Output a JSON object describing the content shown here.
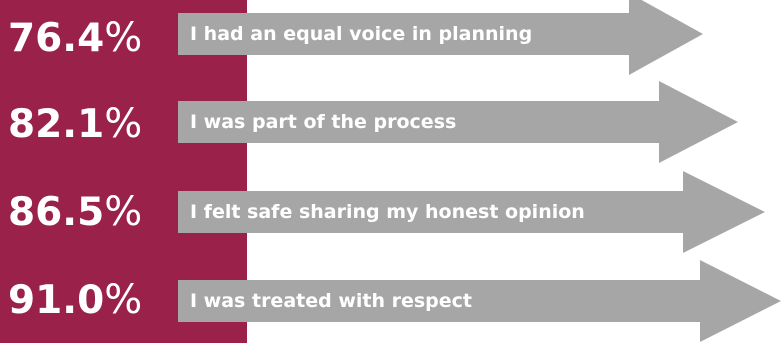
{
  "chart_data": {
    "type": "bar",
    "unit": "%",
    "colors": {
      "panel": "#99214a",
      "arrow": "#a6a6a6",
      "text": "#ffffff"
    },
    "rows": [
      {
        "value": "76.4",
        "label": "I had an equal voice in planning"
      },
      {
        "value": "82.1",
        "label": "I was part of the process"
      },
      {
        "value": "86.5",
        "label": "I felt safe sharing my honest opinion"
      },
      {
        "value": "91.0",
        "label": "I was treated with respect"
      }
    ]
  }
}
